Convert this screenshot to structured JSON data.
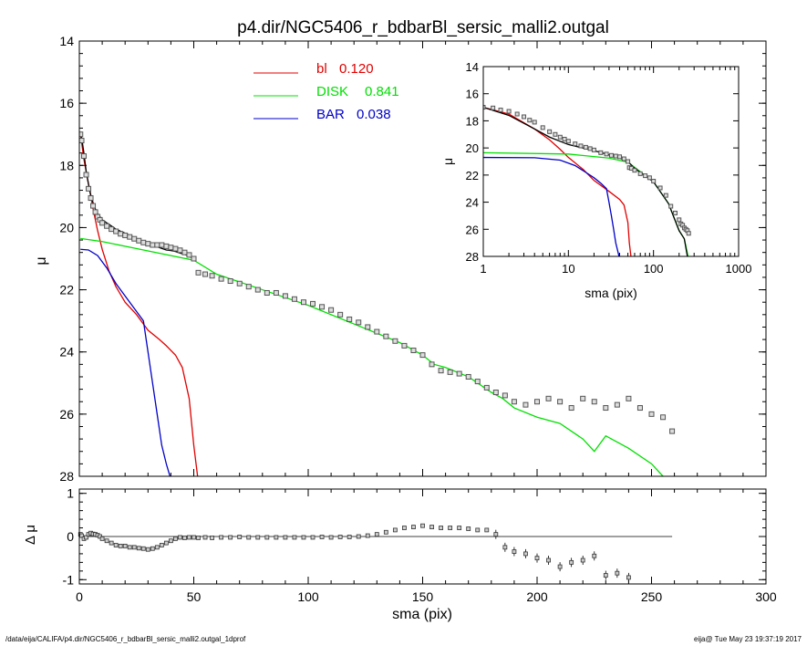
{
  "title": "p4.dir/NGC5406_r_bdbarBl_sersic_malli2.outgal",
  "footer_left": "/data/eija/CALIFA/p4.dir/NGC5406_r_bdbarBl_sersic_malli2.outgal_1dprof",
  "footer_right": "eija@  Tue May 23 19:37:19 2017",
  "colors": {
    "bl": "#e00000",
    "disk": "#00e000",
    "bar": "#0000c8",
    "model": "#000000",
    "data": "#555555"
  },
  "chart_data": [
    {
      "id": "main",
      "type": "line",
      "xlabel": "sma (pix)",
      "ylabel": "μ",
      "xlim": [
        0,
        300
      ],
      "ylim": [
        28,
        14
      ],
      "x_ticks": [
        "0",
        "50",
        "100",
        "150",
        "200",
        "250",
        "300"
      ],
      "y_ticks": [
        "14",
        "16",
        "18",
        "20",
        "22",
        "24",
        "26",
        "28"
      ],
      "legend": [
        {
          "name": "bl",
          "value": "0.120",
          "color": "#e00000"
        },
        {
          "name": "DISK",
          "value": "0.841",
          "color": "#00e000"
        },
        {
          "name": "BAR",
          "value": "0.038",
          "color": "#0000c8"
        }
      ],
      "series": [
        {
          "name": "bl",
          "color": "#e00000",
          "x": [
            0.5,
            2,
            4,
            6,
            8,
            10,
            13,
            16,
            20,
            25,
            30,
            35,
            38,
            42,
            45,
            48,
            50,
            52
          ],
          "y": [
            17.0,
            17.8,
            18.6,
            19.4,
            20.1,
            20.7,
            21.4,
            21.9,
            22.4,
            22.8,
            23.3,
            23.6,
            23.8,
            24.1,
            24.5,
            25.5,
            27.0,
            28.2
          ]
        },
        {
          "name": "DISK",
          "color": "#00e000",
          "x": [
            0.5,
            10,
            20,
            30,
            40,
            50,
            60,
            80,
            100,
            120,
            140,
            150,
            155,
            160,
            170,
            180,
            185,
            190,
            200,
            210,
            220,
            225,
            230,
            240,
            250,
            255
          ],
          "y": [
            20.35,
            20.45,
            20.6,
            20.75,
            20.9,
            21.05,
            21.5,
            22.0,
            22.5,
            23.1,
            23.7,
            24.1,
            24.4,
            24.5,
            24.8,
            25.3,
            25.5,
            25.8,
            26.1,
            26.3,
            26.8,
            27.2,
            26.7,
            27.1,
            27.6,
            28.0
          ]
        },
        {
          "name": "BAR",
          "color": "#0000c8",
          "x": [
            0.5,
            4,
            8,
            12,
            16,
            20,
            24,
            28,
            30,
            32,
            34,
            36,
            38,
            40
          ],
          "y": [
            20.7,
            20.72,
            20.9,
            21.3,
            21.8,
            22.2,
            22.6,
            23.0,
            24.0,
            25.0,
            26.0,
            27.0,
            27.6,
            28.1
          ]
        },
        {
          "name": "model",
          "color": "#000000",
          "x": [
            0.5,
            1,
            2,
            3,
            4,
            5,
            6,
            7,
            8,
            9,
            10,
            12,
            14,
            16,
            18,
            20,
            22,
            24,
            26,
            28,
            30,
            32,
            34,
            36,
            38,
            40,
            42,
            44,
            46,
            48,
            50
          ],
          "y": [
            17.0,
            17.1,
            17.6,
            18.2,
            18.6,
            18.95,
            19.2,
            19.4,
            19.55,
            19.65,
            19.75,
            19.85,
            19.95,
            20.05,
            20.12,
            20.18,
            20.25,
            20.32,
            20.4,
            20.46,
            20.5,
            20.58,
            20.62,
            20.67,
            20.72,
            20.74,
            20.77,
            20.82,
            20.86,
            20.92,
            21.02
          ]
        },
        {
          "name": "data",
          "color": "#555555",
          "x": [
            0.5,
            1,
            2,
            3,
            4,
            5,
            6,
            7,
            8,
            9,
            10,
            12,
            14,
            16,
            18,
            20,
            22,
            24,
            26,
            28,
            30,
            32,
            34,
            36,
            38,
            40,
            42,
            44,
            46,
            48,
            50,
            52,
            55,
            58,
            62,
            66,
            70,
            74,
            78,
            82,
            86,
            90,
            94,
            98,
            102,
            106,
            110,
            114,
            118,
            122,
            126,
            130,
            134,
            138,
            142,
            146,
            150,
            154,
            158,
            162,
            166,
            170,
            174,
            178,
            182,
            186,
            190,
            195,
            200,
            205,
            210,
            215,
            220,
            225,
            230,
            235,
            240,
            245,
            250,
            255,
            259
          ],
          "y": [
            17.0,
            17.2,
            17.7,
            18.3,
            18.75,
            19.05,
            19.3,
            19.5,
            19.65,
            19.75,
            19.85,
            19.95,
            20.05,
            20.12,
            20.2,
            20.25,
            20.3,
            20.36,
            20.42,
            20.48,
            20.52,
            20.56,
            20.56,
            20.56,
            20.6,
            20.64,
            20.68,
            20.73,
            20.8,
            20.88,
            21.0,
            21.45,
            21.5,
            21.55,
            21.65,
            21.72,
            21.8,
            21.9,
            22.0,
            22.1,
            22.1,
            22.2,
            22.3,
            22.4,
            22.45,
            22.55,
            22.65,
            22.8,
            22.95,
            23.05,
            23.2,
            23.35,
            23.5,
            23.65,
            23.8,
            23.95,
            24.1,
            24.4,
            24.6,
            24.65,
            24.7,
            24.8,
            24.95,
            25.15,
            25.3,
            25.4,
            25.6,
            25.7,
            25.6,
            25.5,
            25.6,
            25.8,
            25.5,
            25.6,
            25.8,
            25.7,
            25.5,
            25.8,
            26.0,
            26.1,
            26.55
          ]
        }
      ]
    },
    {
      "id": "residual",
      "type": "scatter",
      "xlabel": "sma (pix)",
      "ylabel": "Δ μ",
      "xlim": [
        0,
        300
      ],
      "ylim": [
        -1.1,
        1.1
      ],
      "y_ticks": [
        "1",
        "0",
        "-1"
      ],
      "baseline": 0,
      "points": {
        "x": [
          0.5,
          1,
          2,
          3,
          4,
          5,
          6,
          7,
          8,
          9,
          10,
          12,
          14,
          16,
          18,
          20,
          22,
          24,
          26,
          28,
          30,
          32,
          34,
          36,
          38,
          40,
          42,
          44,
          46,
          48,
          50,
          52,
          55,
          58,
          62,
          66,
          70,
          74,
          78,
          82,
          86,
          90,
          94,
          98,
          102,
          106,
          110,
          114,
          118,
          122,
          126,
          130,
          134,
          138,
          142,
          146,
          150,
          154,
          158,
          162,
          166,
          170,
          174,
          178,
          182,
          186,
          190,
          195,
          200,
          205,
          210,
          215,
          220,
          225,
          230,
          235,
          240
        ],
        "y": [
          0.05,
          0.02,
          -0.05,
          -0.02,
          0.05,
          0.08,
          0.06,
          0.05,
          0.03,
          0.0,
          -0.05,
          -0.1,
          -0.15,
          -0.2,
          -0.22,
          -0.22,
          -0.25,
          -0.25,
          -0.27,
          -0.28,
          -0.3,
          -0.28,
          -0.25,
          -0.2,
          -0.15,
          -0.1,
          -0.05,
          -0.02,
          -0.03,
          -0.02,
          -0.02,
          -0.03,
          -0.02,
          -0.03,
          -0.02,
          -0.02,
          -0.01,
          -0.02,
          -0.02,
          -0.02,
          -0.02,
          -0.02,
          -0.02,
          -0.02,
          -0.02,
          -0.01,
          -0.02,
          -0.01,
          -0.01,
          0.0,
          0.02,
          0.05,
          0.1,
          0.15,
          0.2,
          0.22,
          0.25,
          0.22,
          0.2,
          0.2,
          0.2,
          0.18,
          0.15,
          0.15,
          0.05,
          -0.25,
          -0.35,
          -0.4,
          -0.5,
          -0.55,
          -0.7,
          -0.6,
          -0.55,
          -0.45,
          -0.9,
          -0.85,
          -0.95
        ]
      }
    },
    {
      "id": "inset",
      "type": "line",
      "xlabel": "sma (pix)",
      "ylabel": "μ",
      "xscale": "log",
      "xlim": [
        1,
        1000
      ],
      "ylim": [
        28,
        14
      ],
      "x_ticks": [
        "1",
        "10",
        "100",
        "1000"
      ],
      "y_ticks": [
        "14",
        "16",
        "18",
        "20",
        "22",
        "24",
        "26",
        "28"
      ],
      "series": [
        {
          "name": "bl",
          "color": "#e00000",
          "x": [
            1,
            2,
            4,
            6,
            8,
            10,
            15,
            20,
            30,
            40,
            45,
            50,
            52,
            55
          ],
          "y": [
            17.0,
            17.5,
            18.6,
            19.4,
            20.1,
            20.7,
            21.6,
            22.4,
            23.2,
            23.8,
            24.2,
            25.5,
            27.0,
            28.3
          ]
        },
        {
          "name": "DISK",
          "color": "#00e000",
          "x": [
            1,
            10,
            30,
            50,
            100,
            150,
            200,
            230,
            255
          ],
          "y": [
            20.35,
            20.45,
            20.75,
            21.05,
            22.5,
            24.1,
            26.1,
            26.7,
            28.0
          ]
        },
        {
          "name": "BAR",
          "color": "#0000c8",
          "x": [
            1,
            4,
            8,
            12,
            16,
            20,
            24,
            28,
            30,
            32,
            34,
            36,
            38,
            40
          ],
          "y": [
            20.7,
            20.72,
            20.9,
            21.3,
            21.8,
            22.2,
            22.6,
            23.0,
            24.0,
            25.0,
            26.0,
            27.0,
            27.6,
            28.2
          ]
        },
        {
          "name": "model",
          "color": "#000000",
          "x": [
            1,
            2,
            4,
            6,
            10,
            20,
            30,
            40,
            50,
            60,
            100,
            150,
            200,
            230,
            250
          ],
          "y": [
            17.0,
            17.6,
            18.6,
            19.2,
            19.75,
            20.2,
            20.5,
            20.75,
            21.0,
            21.5,
            22.5,
            24.1,
            26.1,
            26.7,
            28.0
          ]
        },
        {
          "name": "data",
          "color": "#555555",
          "x": [
            1,
            1.3,
            1.6,
            2,
            2.5,
            3,
            3.5,
            4,
            5,
            6,
            7,
            8,
            9,
            10,
            12,
            14,
            16,
            18,
            20,
            24,
            28,
            32,
            36,
            40,
            45,
            50,
            52,
            55,
            60,
            70,
            80,
            90,
            100,
            120,
            140,
            160,
            180,
            200,
            210,
            220,
            230,
            240,
            250,
            259
          ],
          "y": [
            17.0,
            17.05,
            17.2,
            17.3,
            17.5,
            17.7,
            17.95,
            18.1,
            18.5,
            18.8,
            19.0,
            19.2,
            19.35,
            19.5,
            19.7,
            19.85,
            19.95,
            20.05,
            20.15,
            20.35,
            20.45,
            20.55,
            20.6,
            20.65,
            20.8,
            21.0,
            21.45,
            21.5,
            21.65,
            21.9,
            22.05,
            22.2,
            22.45,
            22.95,
            23.5,
            24.3,
            24.8,
            25.3,
            25.6,
            25.7,
            25.9,
            26.0,
            26.1,
            26.3
          ]
        }
      ]
    }
  ]
}
